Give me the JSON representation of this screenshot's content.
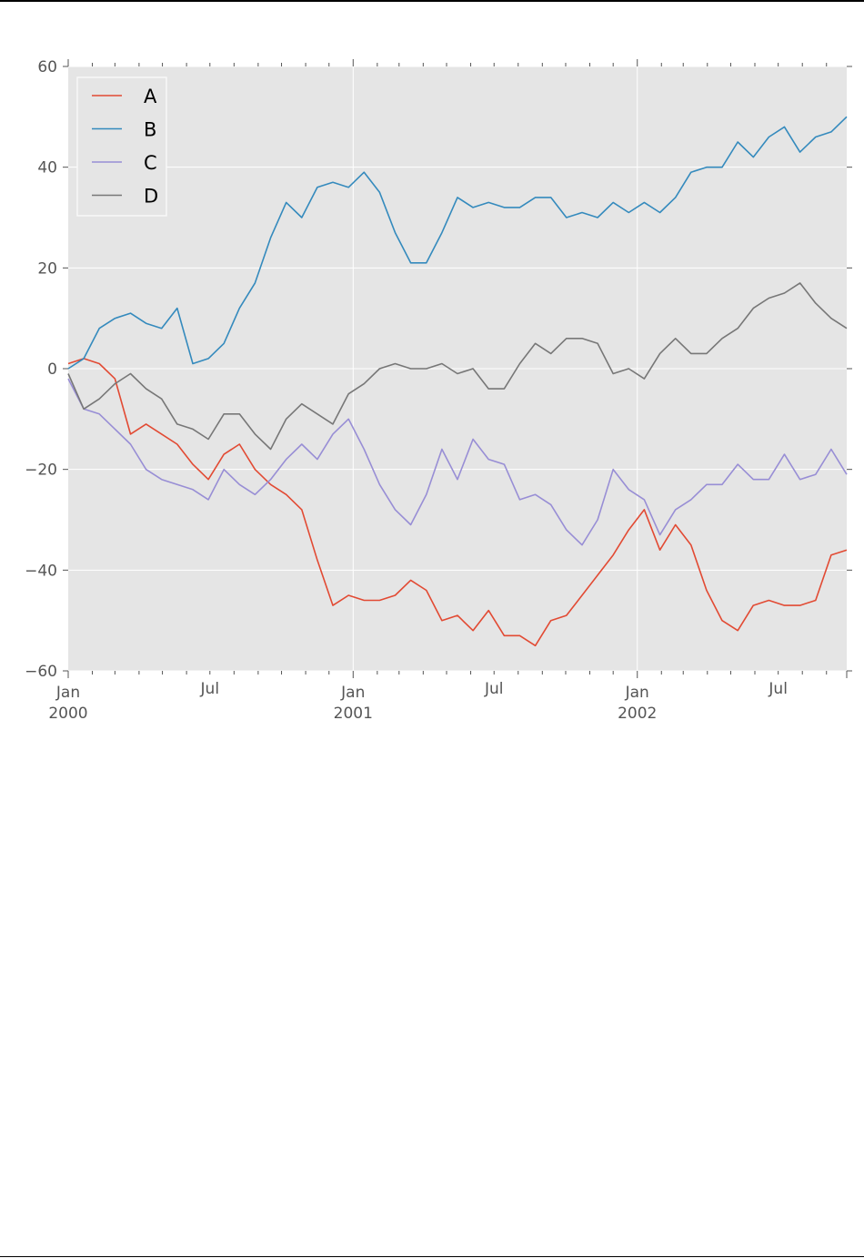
{
  "chart_data": {
    "type": "line",
    "title": "",
    "xlabel": "",
    "ylabel": "",
    "x_unit": "days since 2000-01-01",
    "xlim": [
      0,
      1000
    ],
    "ylim": [
      -60,
      60
    ],
    "grid": true,
    "legend_placement": "top-left",
    "yticks": [
      60,
      40,
      20,
      0,
      -20,
      -40,
      -60
    ],
    "ytick_labels": [
      "60",
      "40",
      "20",
      "0",
      "−20",
      "−40",
      "−60"
    ],
    "xticks": [
      {
        "day": 0,
        "line1": "Jan",
        "line2": "2000"
      },
      {
        "day": 182,
        "line1": "Jul",
        "line2": ""
      },
      {
        "day": 366,
        "line1": "Jan",
        "line2": "2001"
      },
      {
        "day": 547,
        "line1": "Jul",
        "line2": ""
      },
      {
        "day": 731,
        "line1": "Jan",
        "line2": "2002"
      },
      {
        "day": 912,
        "line1": "Jul",
        "line2": ""
      }
    ],
    "x": [
      0,
      20,
      40,
      60,
      80,
      100,
      120,
      140,
      160,
      180,
      200,
      220,
      240,
      260,
      280,
      300,
      320,
      340,
      360,
      380,
      400,
      420,
      440,
      460,
      480,
      500,
      520,
      540,
      560,
      580,
      600,
      620,
      640,
      660,
      680,
      700,
      720,
      740,
      760,
      780,
      800,
      820,
      840,
      860,
      880,
      900,
      920,
      940,
      960,
      980,
      1000
    ],
    "series": [
      {
        "name": "A",
        "color": "#e24a33",
        "values": [
          1,
          2,
          1,
          -2,
          -13,
          -11,
          -13,
          -15,
          -19,
          -22,
          -17,
          -15,
          -20,
          -23,
          -25,
          -28,
          -38,
          -47,
          -45,
          -46,
          -46,
          -45,
          -42,
          -44,
          -50,
          -49,
          -52,
          -48,
          -53,
          -53,
          -55,
          -50,
          -49,
          -45,
          -41,
          -37,
          -32,
          -28,
          -36,
          -31,
          -35,
          -44,
          -50,
          -52,
          -47,
          -46,
          -47,
          -47,
          -46,
          -37,
          -36
        ]
      },
      {
        "name": "B",
        "color": "#348abd",
        "values": [
          0,
          2,
          8,
          10,
          11,
          9,
          8,
          12,
          1,
          2,
          5,
          12,
          17,
          26,
          33,
          30,
          36,
          37,
          36,
          39,
          35,
          27,
          21,
          21,
          27,
          34,
          32,
          33,
          32,
          32,
          34,
          34,
          30,
          31,
          30,
          33,
          31,
          33,
          31,
          34,
          39,
          40,
          40,
          45,
          42,
          46,
          48,
          43,
          46,
          47,
          50
        ]
      },
      {
        "name": "C",
        "color": "#988ed5",
        "values": [
          -2,
          -8,
          -9,
          -12,
          -15,
          -20,
          -22,
          -23,
          -24,
          -26,
          -20,
          -23,
          -25,
          -22,
          -18,
          -15,
          -18,
          -13,
          -10,
          -16,
          -23,
          -28,
          -31,
          -25,
          -16,
          -22,
          -14,
          -18,
          -19,
          -26,
          -25,
          -27,
          -32,
          -35,
          -30,
          -20,
          -24,
          -26,
          -33,
          -28,
          -26,
          -23,
          -23,
          -19,
          -22,
          -22,
          -17,
          -22,
          -21,
          -16,
          -21
        ]
      },
      {
        "name": "D",
        "color": "#777777",
        "values": [
          -1,
          -8,
          -6,
          -3,
          -1,
          -4,
          -6,
          -11,
          -12,
          -14,
          -9,
          -9,
          -13,
          -16,
          -10,
          -7,
          -9,
          -11,
          -5,
          -3,
          0,
          1,
          0,
          0,
          1,
          -1,
          0,
          -4,
          -4,
          1,
          5,
          3,
          6,
          6,
          5,
          -1,
          0,
          -2,
          3,
          6,
          3,
          3,
          6,
          8,
          12,
          14,
          15,
          17,
          13,
          10,
          8
        ]
      }
    ]
  }
}
